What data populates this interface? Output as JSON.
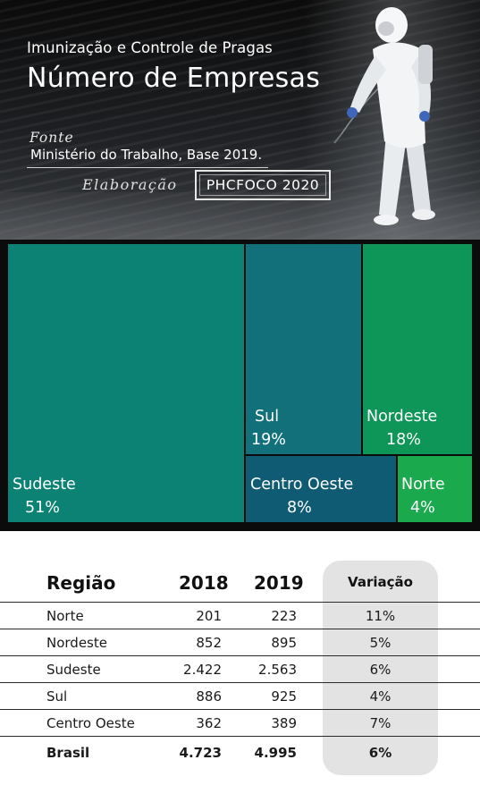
{
  "header": {
    "subtitle": "Imunização e Controle de Pragas",
    "title": "Número de Empresas",
    "fonte_label": "Fonte",
    "fonte_value": "Ministério do Trabalho, Base 2019.",
    "elaboracao_label": "Elaboração",
    "elaboracao_value": "PHCFOCO 2020"
  },
  "chart_data": {
    "type": "treemap",
    "items": [
      {
        "name": "Sudeste",
        "percent_label": "51%",
        "value": 51,
        "color": "#0b8274"
      },
      {
        "name": "Sul",
        "percent_label": "19%",
        "value": 19,
        "color": "#12707b"
      },
      {
        "name": "Nordeste",
        "percent_label": "18%",
        "value": 18,
        "color": "#0e9659"
      },
      {
        "name": "Centro Oeste",
        "percent_label": "8%",
        "value": 8,
        "color": "#0f5b74"
      },
      {
        "name": "Norte",
        "percent_label": "4%",
        "value": 4,
        "color": "#1aa94c"
      }
    ]
  },
  "table": {
    "headers": {
      "region": "Região",
      "y2018": "2018",
      "y2019": "2019",
      "variation": "Variação"
    },
    "rows": [
      {
        "region": "Norte",
        "y2018": "201",
        "y2019": "223",
        "variation": "11%"
      },
      {
        "region": "Nordeste",
        "y2018": "852",
        "y2019": "895",
        "variation": "5%"
      },
      {
        "region": "Sudeste",
        "y2018": "2.422",
        "y2019": "2.563",
        "variation": "6%"
      },
      {
        "region": "Sul",
        "y2018": "886",
        "y2019": "925",
        "variation": "4%"
      },
      {
        "region": "Centro Oeste",
        "y2018": "362",
        "y2019": "389",
        "variation": "7%"
      }
    ],
    "total": {
      "region": "Brasil",
      "y2018": "4.723",
      "y2019": "4.995",
      "variation": "6%"
    }
  }
}
